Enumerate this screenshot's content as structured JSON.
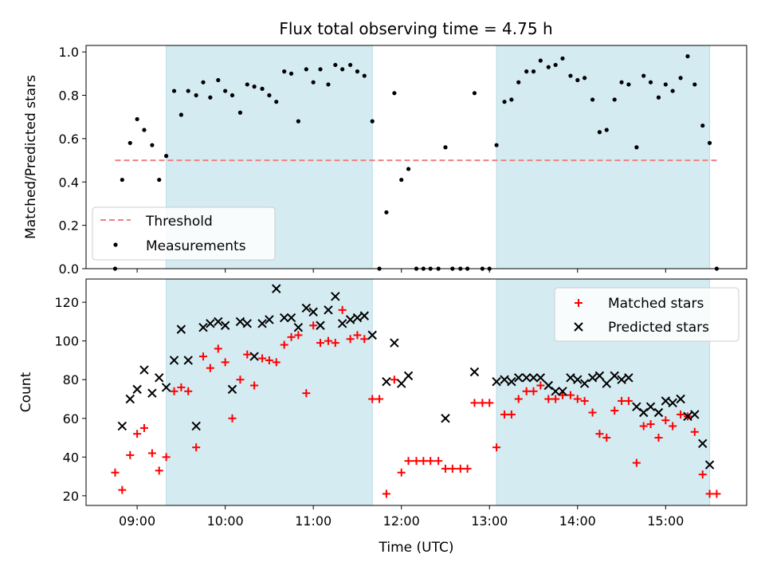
{
  "figure": {
    "title": "Flux total observing time = 4.75 h"
  },
  "chart_data": [
    {
      "type": "scatter",
      "panel": "top",
      "ylabel": "Matched/Predicted stars",
      "xlabel": "",
      "xlim": [
        8.42,
        15.92
      ],
      "ylim": [
        0.0,
        1.03
      ],
      "xticks": [
        9,
        10,
        11,
        12,
        13,
        14,
        15
      ],
      "xtick_labels": [
        "09:00",
        "10:00",
        "11:00",
        "12:00",
        "13:00",
        "14:00",
        "15:00"
      ],
      "yticks": [
        0.0,
        0.2,
        0.4,
        0.6,
        0.8,
        1.0
      ],
      "ytick_labels": [
        "0.0",
        "0.2",
        "0.4",
        "0.6",
        "0.8",
        "1.0"
      ],
      "grid": false,
      "legend_position": "lower-left",
      "shaded_intervals": [
        [
          9.33,
          11.67
        ],
        [
          13.08,
          15.5
        ]
      ],
      "threshold": {
        "name": "Threshold",
        "value": 0.5,
        "x_range": [
          8.75,
          15.58
        ],
        "color": "#f08080"
      },
      "measurements": {
        "name": "Measurements",
        "color": "#000000",
        "points": [
          [
            8.75,
            0.0
          ],
          [
            8.83,
            0.41
          ],
          [
            8.92,
            0.58
          ],
          [
            9.0,
            0.69
          ],
          [
            9.08,
            0.64
          ],
          [
            9.17,
            0.57
          ],
          [
            9.25,
            0.41
          ],
          [
            9.33,
            0.52
          ],
          [
            9.42,
            0.82
          ],
          [
            9.5,
            0.71
          ],
          [
            9.58,
            0.82
          ],
          [
            9.67,
            0.8
          ],
          [
            9.75,
            0.86
          ],
          [
            9.83,
            0.79
          ],
          [
            9.92,
            0.87
          ],
          [
            10.0,
            0.82
          ],
          [
            10.08,
            0.8
          ],
          [
            10.17,
            0.72
          ],
          [
            10.25,
            0.85
          ],
          [
            10.33,
            0.84
          ],
          [
            10.42,
            0.83
          ],
          [
            10.5,
            0.8
          ],
          [
            10.58,
            0.77
          ],
          [
            10.67,
            0.91
          ],
          [
            10.75,
            0.9
          ],
          [
            10.83,
            0.68
          ],
          [
            10.92,
            0.92
          ],
          [
            11.0,
            0.86
          ],
          [
            11.08,
            0.92
          ],
          [
            11.17,
            0.85
          ],
          [
            11.25,
            0.94
          ],
          [
            11.33,
            0.92
          ],
          [
            11.42,
            0.94
          ],
          [
            11.5,
            0.91
          ],
          [
            11.58,
            0.89
          ],
          [
            11.67,
            0.68
          ],
          [
            11.75,
            0.0
          ],
          [
            11.83,
            0.26
          ],
          [
            11.92,
            0.81
          ],
          [
            12.0,
            0.41
          ],
          [
            12.08,
            0.46
          ],
          [
            12.17,
            0.0
          ],
          [
            12.25,
            0.0
          ],
          [
            12.33,
            0.0
          ],
          [
            12.42,
            0.0
          ],
          [
            12.5,
            0.56
          ],
          [
            12.58,
            0.0
          ],
          [
            12.67,
            0.0
          ],
          [
            12.75,
            0.0
          ],
          [
            12.83,
            0.81
          ],
          [
            12.92,
            0.0
          ],
          [
            13.0,
            0.0
          ],
          [
            13.08,
            0.57
          ],
          [
            13.17,
            0.77
          ],
          [
            13.25,
            0.78
          ],
          [
            13.33,
            0.86
          ],
          [
            13.42,
            0.91
          ],
          [
            13.5,
            0.91
          ],
          [
            13.58,
            0.96
          ],
          [
            13.67,
            0.93
          ],
          [
            13.75,
            0.94
          ],
          [
            13.83,
            0.97
          ],
          [
            13.92,
            0.89
          ],
          [
            14.0,
            0.87
          ],
          [
            14.08,
            0.88
          ],
          [
            14.17,
            0.78
          ],
          [
            14.25,
            0.63
          ],
          [
            14.33,
            0.64
          ],
          [
            14.42,
            0.78
          ],
          [
            14.5,
            0.86
          ],
          [
            14.58,
            0.85
          ],
          [
            14.67,
            0.56
          ],
          [
            14.75,
            0.89
          ],
          [
            14.83,
            0.86
          ],
          [
            14.92,
            0.79
          ],
          [
            15.0,
            0.85
          ],
          [
            15.08,
            0.82
          ],
          [
            15.17,
            0.88
          ],
          [
            15.25,
            0.98
          ],
          [
            15.33,
            0.85
          ],
          [
            15.42,
            0.66
          ],
          [
            15.5,
            0.58
          ],
          [
            15.58,
            0.0
          ]
        ]
      },
      "legend_entries": [
        "Threshold",
        "Measurements"
      ]
    },
    {
      "type": "scatter",
      "panel": "bottom",
      "ylabel": "Count",
      "xlabel": "Time (UTC)",
      "xlim": [
        8.42,
        15.92
      ],
      "ylim": [
        15,
        132
      ],
      "xticks": [
        9,
        10,
        11,
        12,
        13,
        14,
        15
      ],
      "xtick_labels": [
        "09:00",
        "10:00",
        "11:00",
        "12:00",
        "13:00",
        "14:00",
        "15:00"
      ],
      "yticks": [
        20,
        40,
        60,
        80,
        100,
        120
      ],
      "ytick_labels": [
        "20",
        "40",
        "60",
        "80",
        "100",
        "120"
      ],
      "grid": false,
      "legend_position": "top-right",
      "shaded_intervals": [
        [
          9.33,
          11.67
        ],
        [
          13.08,
          15.5
        ]
      ],
      "series": [
        {
          "name": "Matched stars",
          "marker": "plus",
          "color": "#ff0000",
          "points": [
            [
              8.75,
              32
            ],
            [
              8.83,
              23
            ],
            [
              8.92,
              41
            ],
            [
              9.0,
              52
            ],
            [
              9.08,
              55
            ],
            [
              9.17,
              42
            ],
            [
              9.25,
              33
            ],
            [
              9.33,
              40
            ],
            [
              9.42,
              74
            ],
            [
              9.5,
              76
            ],
            [
              9.58,
              74
            ],
            [
              9.67,
              45
            ],
            [
              9.75,
              92
            ],
            [
              9.83,
              86
            ],
            [
              9.92,
              96
            ],
            [
              10.0,
              89
            ],
            [
              10.08,
              60
            ],
            [
              10.17,
              80
            ],
            [
              10.25,
              93
            ],
            [
              10.33,
              77
            ],
            [
              10.42,
              91
            ],
            [
              10.5,
              90
            ],
            [
              10.58,
              89
            ],
            [
              10.67,
              98
            ],
            [
              10.75,
              102
            ],
            [
              10.83,
              103
            ],
            [
              10.92,
              73
            ],
            [
              11.0,
              108
            ],
            [
              11.08,
              99
            ],
            [
              11.17,
              100
            ],
            [
              11.25,
              99
            ],
            [
              11.33,
              116
            ],
            [
              11.42,
              101
            ],
            [
              11.5,
              103
            ],
            [
              11.58,
              101
            ],
            [
              11.67,
              70
            ],
            [
              11.75,
              70
            ],
            [
              11.83,
              21
            ],
            [
              11.92,
              80
            ],
            [
              12.0,
              32
            ],
            [
              12.08,
              38
            ],
            [
              12.17,
              38
            ],
            [
              12.25,
              38
            ],
            [
              12.33,
              38
            ],
            [
              12.42,
              38
            ],
            [
              12.5,
              34
            ],
            [
              12.58,
              34
            ],
            [
              12.67,
              34
            ],
            [
              12.75,
              34
            ],
            [
              12.83,
              68
            ],
            [
              12.92,
              68
            ],
            [
              13.0,
              68
            ],
            [
              13.08,
              45
            ],
            [
              13.17,
              62
            ],
            [
              13.25,
              62
            ],
            [
              13.33,
              70
            ],
            [
              13.42,
              74
            ],
            [
              13.5,
              74
            ],
            [
              13.58,
              77
            ],
            [
              13.67,
              70
            ],
            [
              13.75,
              70
            ],
            [
              13.83,
              72
            ],
            [
              13.92,
              72
            ],
            [
              14.0,
              70
            ],
            [
              14.08,
              69
            ],
            [
              14.17,
              63
            ],
            [
              14.25,
              52
            ],
            [
              14.33,
              50
            ],
            [
              14.42,
              64
            ],
            [
              14.5,
              69
            ],
            [
              14.58,
              69
            ],
            [
              14.67,
              37
            ],
            [
              14.75,
              56
            ],
            [
              14.83,
              57
            ],
            [
              14.92,
              50
            ],
            [
              15.0,
              59
            ],
            [
              15.08,
              56
            ],
            [
              15.17,
              62
            ],
            [
              15.25,
              61
            ],
            [
              15.33,
              53
            ],
            [
              15.42,
              31
            ],
            [
              15.5,
              21
            ],
            [
              15.58,
              21
            ]
          ]
        },
        {
          "name": "Predicted stars",
          "marker": "x",
          "color": "#000000",
          "points": [
            [
              8.83,
              56
            ],
            [
              8.92,
              70
            ],
            [
              9.0,
              75
            ],
            [
              9.08,
              85
            ],
            [
              9.17,
              73
            ],
            [
              9.25,
              81
            ],
            [
              9.33,
              76
            ],
            [
              9.42,
              90
            ],
            [
              9.5,
              106
            ],
            [
              9.58,
              90
            ],
            [
              9.67,
              56
            ],
            [
              9.75,
              107
            ],
            [
              9.83,
              109
            ],
            [
              9.92,
              110
            ],
            [
              10.0,
              108
            ],
            [
              10.08,
              75
            ],
            [
              10.17,
              110
            ],
            [
              10.25,
              109
            ],
            [
              10.33,
              92
            ],
            [
              10.42,
              109
            ],
            [
              10.5,
              111
            ],
            [
              10.58,
              127
            ],
            [
              10.67,
              112
            ],
            [
              10.75,
              112
            ],
            [
              10.83,
              107
            ],
            [
              10.92,
              117
            ],
            [
              11.0,
              115
            ],
            [
              11.08,
              108
            ],
            [
              11.17,
              116
            ],
            [
              11.25,
              123
            ],
            [
              11.33,
              109
            ],
            [
              11.42,
              111
            ],
            [
              11.5,
              112
            ],
            [
              11.58,
              113
            ],
            [
              11.67,
              103
            ],
            [
              11.83,
              79
            ],
            [
              11.92,
              99
            ],
            [
              12.0,
              78
            ],
            [
              12.08,
              82
            ],
            [
              12.5,
              60
            ],
            [
              12.83,
              84
            ],
            [
              13.08,
              79
            ],
            [
              13.17,
              80
            ],
            [
              13.25,
              79
            ],
            [
              13.33,
              81
            ],
            [
              13.42,
              81
            ],
            [
              13.5,
              81
            ],
            [
              13.58,
              81
            ],
            [
              13.67,
              77
            ],
            [
              13.75,
              74
            ],
            [
              13.83,
              74
            ],
            [
              13.92,
              81
            ],
            [
              14.0,
              80
            ],
            [
              14.08,
              78
            ],
            [
              14.17,
              81
            ],
            [
              14.25,
              82
            ],
            [
              14.33,
              78
            ],
            [
              14.42,
              82
            ],
            [
              14.5,
              80
            ],
            [
              14.58,
              81
            ],
            [
              14.67,
              66
            ],
            [
              14.75,
              63
            ],
            [
              14.83,
              66
            ],
            [
              14.92,
              63
            ],
            [
              15.0,
              69
            ],
            [
              15.08,
              68
            ],
            [
              15.17,
              70
            ],
            [
              15.25,
              61
            ],
            [
              15.33,
              62
            ],
            [
              15.42,
              47
            ],
            [
              15.5,
              36
            ]
          ]
        }
      ],
      "legend_entries": [
        "Matched stars",
        "Predicted stars"
      ]
    }
  ]
}
